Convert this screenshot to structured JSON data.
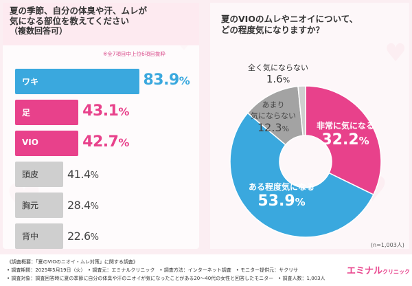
{
  "left_question": {
    "line1": "夏の季節、自分の体臭や汗、ムレが",
    "line2": "気になる部位を教えてください",
    "line3": "（複数回答可）"
  },
  "left_note": "※全7項目中上位6項目抜粋",
  "right_question": {
    "line1": "夏のVIOのムレやニオイについて、",
    "line2": "どの程度気になりますか？"
  },
  "sample_note": "(n=1,003人)",
  "footer": {
    "line1": "《調査概要：「夏のVIOのニオイ・ムレ対策」に関する調査》",
    "line2": "• 調査期間：2025年5月19日（火）　• 調査元：エミナルクリニック　• 調査方法：インターネット調査　• モニター提供元：サクリサ",
    "line3": "• 調査対象：調査回答時に夏の季節に自分の体臭や汗のニオイが気になったことがある20～40代の女性と回答したモニター　• 調査人数：1,003人"
  },
  "brand": {
    "name": "エミナル",
    "suffix": "クリニック"
  },
  "colors": {
    "pink": "#e8418b",
    "blue": "#3aa8de",
    "gray": "#cfcfcf",
    "dark_gray": "#9a9a9a"
  },
  "chart_data": [
    {
      "type": "bar",
      "orientation": "horizontal",
      "categories": [
        "ワキ",
        "足",
        "VIO",
        "頭皮",
        "胸元",
        "背中"
      ],
      "values": [
        83.9,
        43.1,
        42.7,
        41.4,
        28.4,
        22.6
      ],
      "value_labels": [
        "83.9",
        "43.1",
        "42.7",
        "41.4",
        "28.4",
        "22.6"
      ],
      "unit": "%",
      "colors": [
        "#3aa8de",
        "#e8418b",
        "#e8418b",
        "#cfcfcf",
        "#cfcfcf",
        "#cfcfcf"
      ],
      "xlim": [
        0,
        100
      ]
    },
    {
      "type": "pie",
      "style": "donut",
      "categories": [
        "非常に気になる",
        "ある程度気になる",
        "あまり気にならない",
        "全く気にならない"
      ],
      "values": [
        32.2,
        53.9,
        12.3,
        1.6
      ],
      "value_labels": [
        "32.2",
        "53.9",
        "12.3",
        "1.6"
      ],
      "label_lines": [
        [
          "非常に気になる"
        ],
        [
          "ある程度気になる"
        ],
        [
          "あまり",
          "気にならない"
        ],
        [
          "全く気にならない"
        ]
      ],
      "unit": "%",
      "colors": [
        "#e8418b",
        "#3aa8de",
        "#a3a3a3",
        "#cfcfcf"
      ]
    }
  ]
}
